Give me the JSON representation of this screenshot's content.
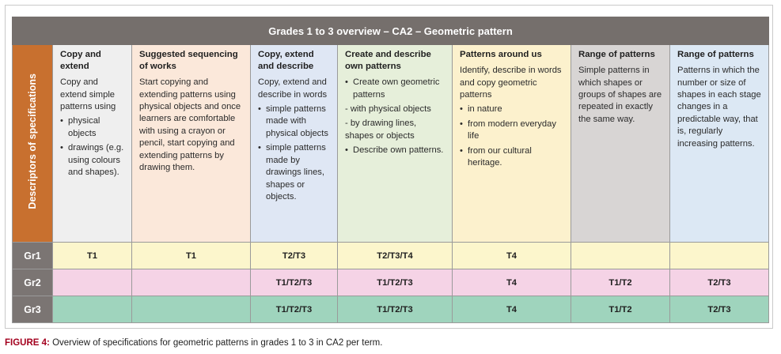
{
  "title": "Grades 1 to 3 overview – CA2 – Geometric pattern",
  "side_label": "Descriptors of specifications",
  "columns": [
    {
      "heading": "Copy and extend",
      "intro": "Copy and extend simple patterns using",
      "items": [
        {
          "text": "physical objects",
          "bullet": true
        },
        {
          "text": "drawings (e.g. using colours and shapes).",
          "bullet": true
        }
      ]
    },
    {
      "heading": "Suggested sequencing of works",
      "intro": "Start copying and extending patterns using physical objects and once learners are comfortable with using a crayon or pencil, start copying and extending patterns by drawing them.",
      "items": []
    },
    {
      "heading": "Copy, extend and describe",
      "intro": "Copy, extend and describe in words",
      "items": [
        {
          "text": "simple patterns made with physical objects",
          "bullet": true
        },
        {
          "text": "simple patterns made by drawings lines, shapes or objects.",
          "bullet": true
        }
      ]
    },
    {
      "heading": "Create and describe own patterns",
      "intro": "",
      "items": [
        {
          "text": "Create own geometric patterns",
          "bullet": true
        },
        {
          "text": "- with physical objects",
          "bullet": false
        },
        {
          "text": "- by drawing lines, shapes or objects",
          "bullet": false
        },
        {
          "text": "Describe own patterns.",
          "bullet": true
        }
      ]
    },
    {
      "heading": "Patterns around us",
      "intro": "Identify, describe in words and copy geometric patterns",
      "items": [
        {
          "text": "in nature",
          "bullet": true
        },
        {
          "text": "from modern everyday life",
          "bullet": true
        },
        {
          "text": "from our cultural heritage.",
          "bullet": true
        }
      ]
    },
    {
      "heading": "Range of patterns",
      "intro": "Simple patterns in which shapes or groups of shapes are repeated in exactly the same way.",
      "items": []
    },
    {
      "heading": "Range of patterns",
      "intro": "Patterns in which the number or size of shapes in each stage changes in a predictable way, that is, regularly increasing patterns.",
      "items": []
    }
  ],
  "grades": [
    {
      "label": "Gr1",
      "cells": [
        "T1",
        "T1",
        "T2/T3",
        "T2/T3/T4",
        "T4",
        "",
        ""
      ]
    },
    {
      "label": "Gr2",
      "cells": [
        "",
        "",
        "T1/T2/T3",
        "T1/T2/T3",
        "T4",
        "T1/T2",
        "T2/T3"
      ]
    },
    {
      "label": "Gr3",
      "cells": [
        "",
        "",
        "T1/T2/T3",
        "T1/T2/T3",
        "T4",
        "T1/T2",
        "T2/T3"
      ]
    }
  ],
  "caption": {
    "label": "FIGURE 4:",
    "text": " Overview of specifications for geometric patterns in grades 1 to 3 in CA2 per term."
  }
}
